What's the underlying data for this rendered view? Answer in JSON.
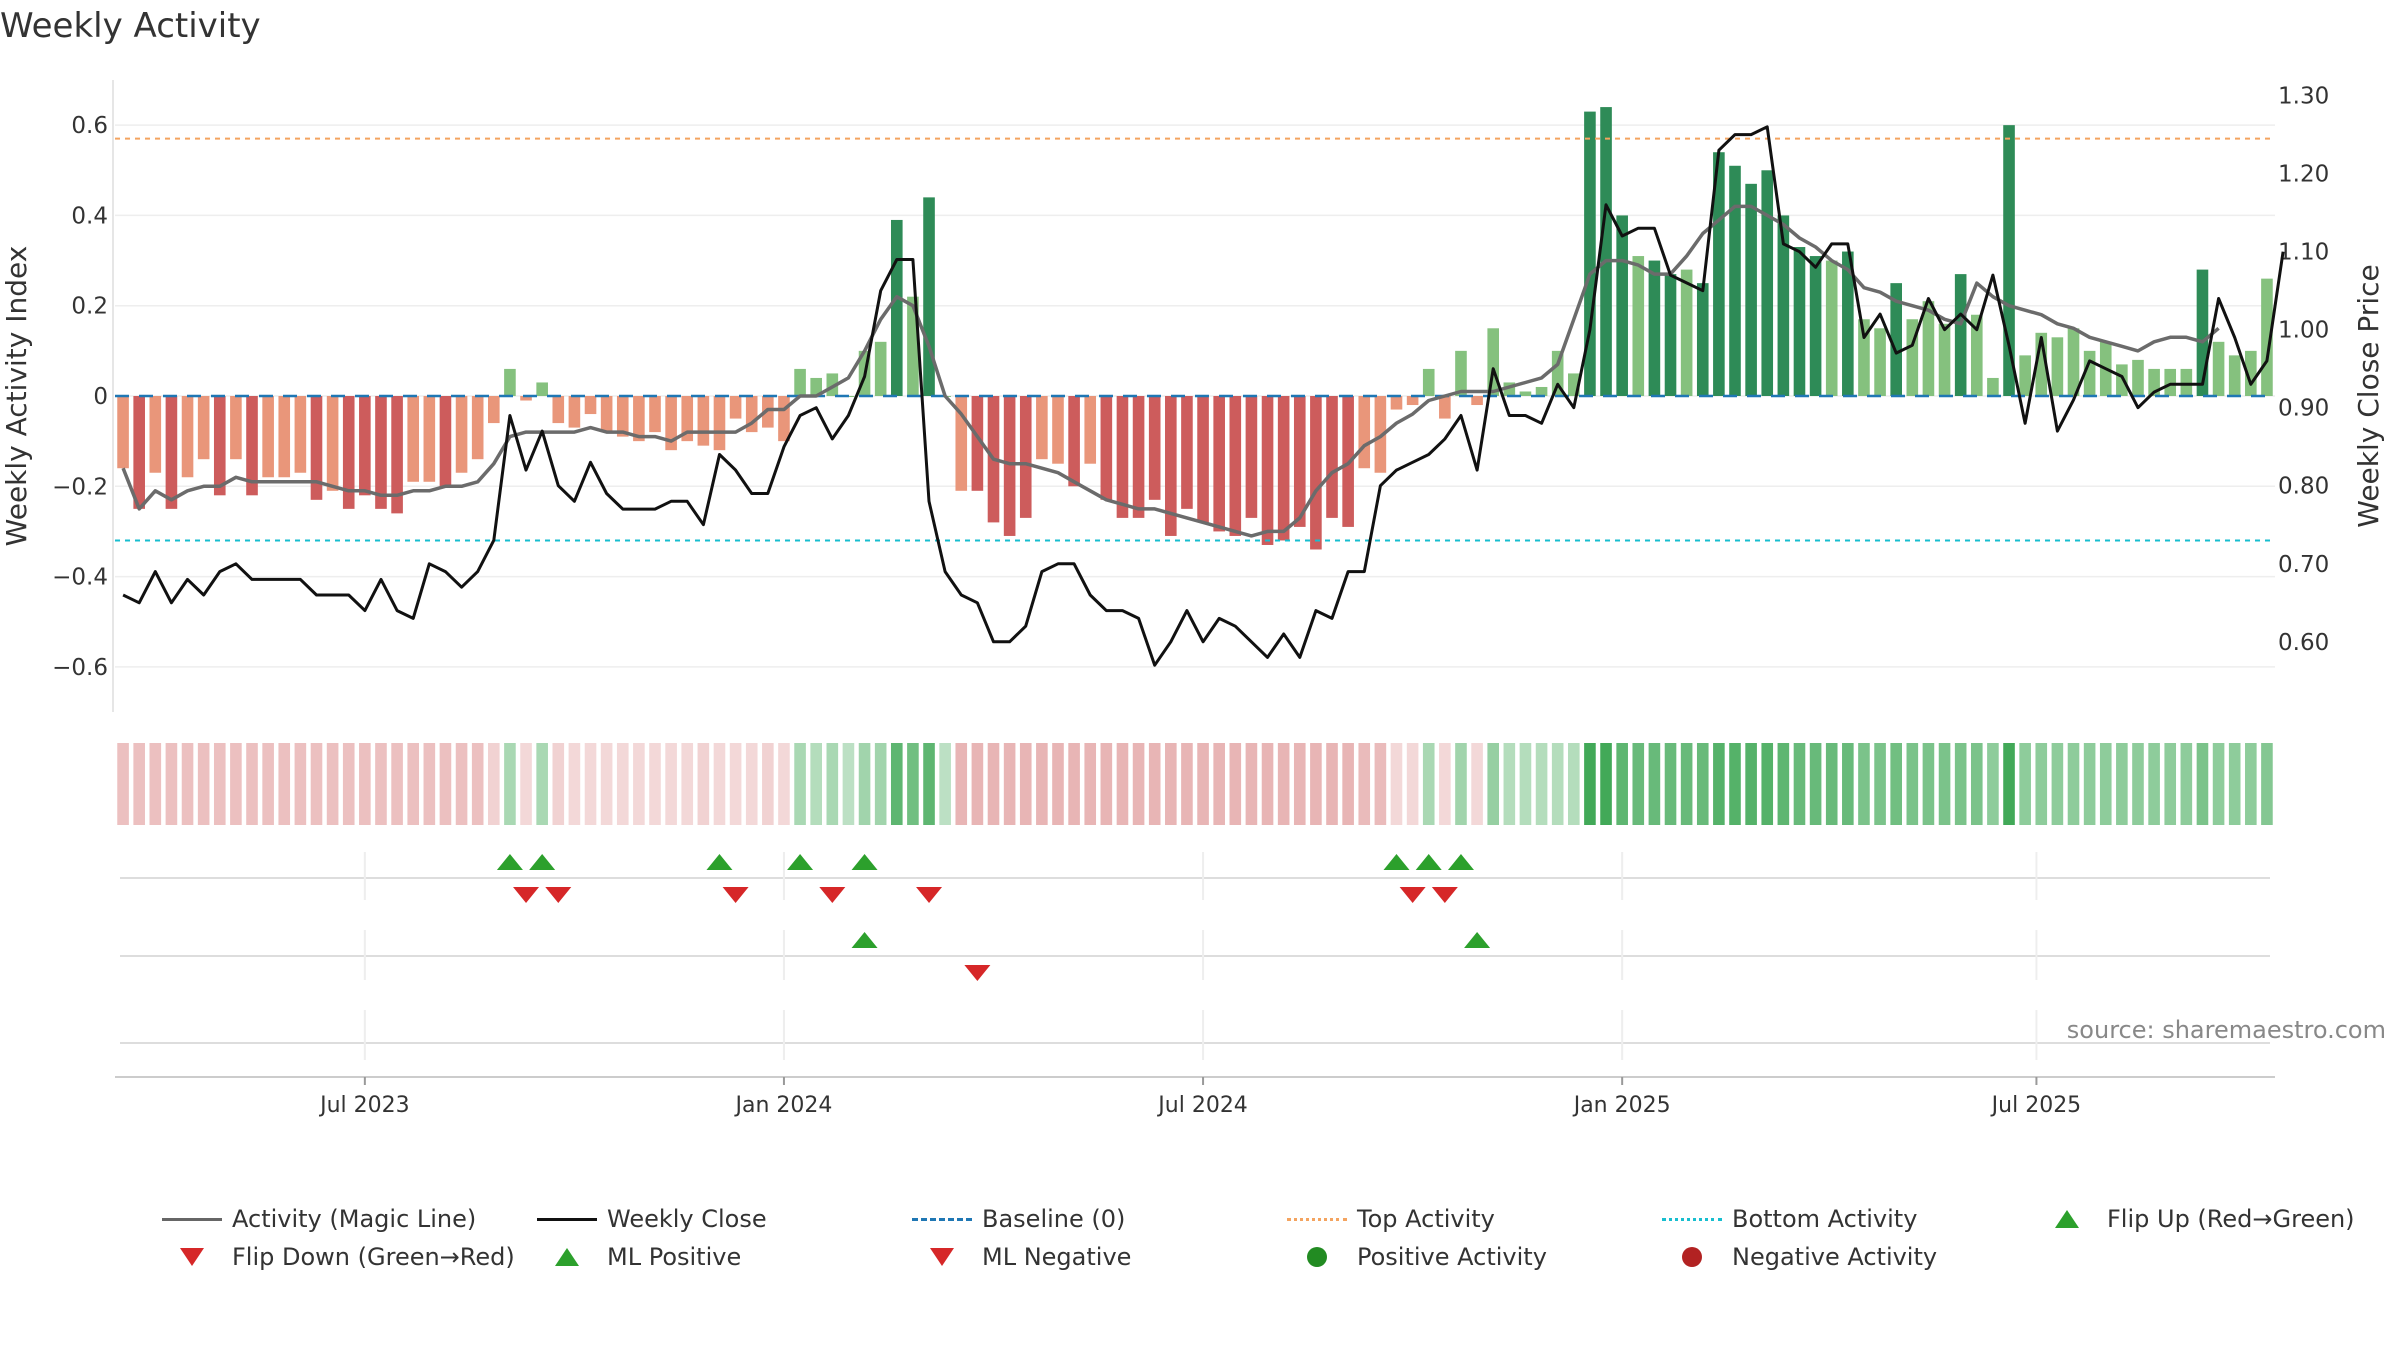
{
  "title": "Weekly Activity",
  "source": "source: sharemaestro.com",
  "colors": {
    "pos_dark": "#2e8b57",
    "pos_light": "#85c17e",
    "neg_dark": "#cd5c5c",
    "neg_light": "#e9967a",
    "magic": "#6b6b6b",
    "close": "#111111",
    "baseline": "#1f77b4",
    "top": "#f4a460",
    "bottom": "#17becf",
    "flip_up": "#2ca02c",
    "flip_down": "#d62728",
    "pos_dot": "#228b22",
    "neg_dot": "#b22222"
  },
  "legend": {
    "magic": "Activity (Magic Line)",
    "close": "Weekly Close",
    "baseline": "Baseline (0)",
    "top": "Top Activity",
    "bottom": "Bottom Activity",
    "flip_up": "Flip Up (Red→Green)",
    "flip_down": "Flip Down (Green→Red)",
    "ml_pos": "ML Positive",
    "ml_neg": "ML Negative",
    "pos_act": "Positive Activity",
    "neg_act": "Negative Activity"
  },
  "chart_data": {
    "type": "bar",
    "title": "Weekly Activity",
    "ylabel": "Weekly Activity Index",
    "y2label": "Weekly Close Price",
    "ylim": [
      -0.7,
      0.7
    ],
    "y2lim": [
      0.51,
      1.32
    ],
    "yticks": [
      -0.6,
      -0.4,
      -0.2,
      0,
      0.2,
      0.4,
      0.6
    ],
    "ytick_labels": [
      "−0.6",
      "−0.4",
      "−0.2",
      "0",
      "0.2",
      "0.4",
      "0.6"
    ],
    "y2ticks": [
      0.6,
      0.7,
      0.8,
      0.9,
      1.0,
      1.1,
      1.2,
      1.3
    ],
    "y2tick_labels": [
      "0.60",
      "0.70",
      "0.80",
      "0.90",
      "1.00",
      "1.10",
      "1.20",
      "1.30"
    ],
    "xticks": [
      {
        "week": 15.5,
        "label": "Jul 2023"
      },
      {
        "week": 41.5,
        "label": "Jan 2024"
      },
      {
        "week": 67.5,
        "label": "Jul 2024"
      },
      {
        "week": 93.5,
        "label": "Jan 2025"
      },
      {
        "week": 119.2,
        "label": "Jul 2025"
      }
    ],
    "top_activity": 0.57,
    "bottom_activity": -0.32,
    "baseline": 0,
    "activity": [
      -0.16,
      -0.25,
      -0.17,
      -0.25,
      -0.18,
      -0.14,
      -0.22,
      -0.14,
      -0.22,
      -0.18,
      -0.18,
      -0.17,
      -0.23,
      -0.21,
      -0.25,
      -0.22,
      -0.25,
      -0.26,
      -0.19,
      -0.19,
      -0.2,
      -0.17,
      -0.14,
      -0.06,
      0.06,
      -0.01,
      0.03,
      -0.06,
      -0.07,
      -0.04,
      -0.08,
      -0.09,
      -0.1,
      -0.08,
      -0.12,
      -0.1,
      -0.11,
      -0.12,
      -0.05,
      -0.08,
      -0.07,
      -0.1,
      0.06,
      0.04,
      0.05,
      0.0,
      0.1,
      0.12,
      0.39,
      0.22,
      0.44,
      0.0,
      -0.21,
      -0.21,
      -0.28,
      -0.31,
      -0.27,
      -0.14,
      -0.15,
      -0.2,
      -0.15,
      -0.23,
      -0.27,
      -0.27,
      -0.23,
      -0.31,
      -0.25,
      -0.28,
      -0.3,
      -0.31,
      -0.27,
      -0.33,
      -0.32,
      -0.29,
      -0.34,
      -0.27,
      -0.29,
      -0.16,
      -0.17,
      -0.03,
      -0.02,
      0.06,
      -0.05,
      0.1,
      -0.02,
      0.15,
      0.03,
      0.01,
      0.02,
      0.1,
      0.05,
      0.63,
      0.64,
      0.4,
      0.31,
      0.3,
      0.27,
      0.28,
      0.25,
      0.54,
      0.51,
      0.47,
      0.5,
      0.4,
      0.33,
      0.31,
      0.3,
      0.32,
      0.17,
      0.15,
      0.25,
      0.17,
      0.21,
      0.16,
      0.27,
      0.18,
      0.04,
      0.6,
      0.09,
      0.14,
      0.13,
      0.15,
      0.1,
      0.12,
      0.07,
      0.08,
      0.06,
      0.06,
      0.06,
      0.28,
      0.12,
      0.09,
      0.1,
      0.26
    ],
    "magic_line": [
      -0.16,
      -0.25,
      -0.21,
      -0.23,
      -0.21,
      -0.2,
      -0.2,
      -0.18,
      -0.19,
      -0.19,
      -0.19,
      -0.19,
      -0.19,
      -0.2,
      -0.21,
      -0.21,
      -0.22,
      -0.22,
      -0.21,
      -0.21,
      -0.2,
      -0.2,
      -0.19,
      -0.15,
      -0.09,
      -0.08,
      -0.08,
      -0.08,
      -0.08,
      -0.07,
      -0.08,
      -0.08,
      -0.09,
      -0.09,
      -0.1,
      -0.08,
      -0.08,
      -0.08,
      -0.08,
      -0.06,
      -0.03,
      -0.03,
      0.0,
      0.0,
      0.02,
      0.04,
      0.1,
      0.17,
      0.22,
      0.2,
      0.11,
      0.0,
      -0.04,
      -0.09,
      -0.14,
      -0.15,
      -0.15,
      -0.16,
      -0.17,
      -0.19,
      -0.21,
      -0.23,
      -0.24,
      -0.25,
      -0.25,
      -0.26,
      -0.27,
      -0.28,
      -0.29,
      -0.3,
      -0.31,
      -0.3,
      -0.3,
      -0.27,
      -0.21,
      -0.17,
      -0.15,
      -0.11,
      -0.09,
      -0.06,
      -0.04,
      -0.01,
      0.0,
      0.01,
      0.01,
      0.01,
      0.02,
      0.03,
      0.04,
      0.07,
      0.17,
      0.27,
      0.3,
      0.3,
      0.29,
      0.27,
      0.27,
      0.31,
      0.36,
      0.39,
      0.42,
      0.42,
      0.4,
      0.38,
      0.35,
      0.33,
      0.3,
      0.28,
      0.24,
      0.23,
      0.21,
      0.2,
      0.19,
      0.17,
      0.16,
      0.25,
      0.22,
      0.2,
      0.19,
      0.18,
      0.16,
      0.15,
      0.13,
      0.12,
      0.11,
      0.1,
      0.12,
      0.13,
      0.13,
      0.12,
      0.15
    ],
    "weekly_close": [
      0.66,
      0.65,
      0.69,
      0.65,
      0.68,
      0.66,
      0.69,
      0.7,
      0.68,
      0.68,
      0.68,
      0.68,
      0.66,
      0.66,
      0.66,
      0.64,
      0.68,
      0.64,
      0.63,
      0.7,
      0.69,
      0.67,
      0.69,
      0.73,
      0.89,
      0.82,
      0.87,
      0.8,
      0.78,
      0.83,
      0.79,
      0.77,
      0.77,
      0.77,
      0.78,
      0.78,
      0.75,
      0.84,
      0.82,
      0.79,
      0.79,
      0.85,
      0.89,
      0.9,
      0.86,
      0.89,
      0.94,
      1.05,
      1.09,
      1.09,
      0.78,
      0.69,
      0.66,
      0.65,
      0.6,
      0.6,
      0.62,
      0.69,
      0.7,
      0.7,
      0.66,
      0.64,
      0.64,
      0.63,
      0.57,
      0.6,
      0.64,
      0.6,
      0.63,
      0.62,
      0.6,
      0.58,
      0.61,
      0.58,
      0.64,
      0.63,
      0.69,
      0.69,
      0.8,
      0.82,
      0.83,
      0.84,
      0.86,
      0.89,
      0.82,
      0.95,
      0.89,
      0.89,
      0.88,
      0.93,
      0.9,
      1.0,
      1.16,
      1.12,
      1.13,
      1.13,
      1.07,
      1.06,
      1.05,
      1.23,
      1.25,
      1.25,
      1.26,
      1.11,
      1.1,
      1.08,
      1.11,
      1.11,
      0.99,
      1.02,
      0.97,
      0.98,
      1.04,
      1.0,
      1.02,
      1.0,
      1.07,
      0.98,
      0.88,
      0.99,
      0.87,
      0.91,
      0.96,
      0.95,
      0.94,
      0.9,
      0.92,
      0.93,
      0.93,
      0.93,
      1.04,
      0.99,
      0.93,
      0.96,
      1.1
    ],
    "strip_intensity": [
      0.55,
      0.55,
      0.55,
      0.55,
      0.55,
      0.55,
      0.55,
      0.55,
      0.55,
      0.55,
      0.55,
      0.55,
      0.55,
      0.55,
      0.55,
      0.55,
      0.55,
      0.55,
      0.55,
      0.55,
      0.55,
      0.55,
      0.55,
      0.4,
      0.45,
      0.35,
      0.45,
      0.4,
      0.35,
      0.35,
      0.35,
      0.35,
      0.35,
      0.35,
      0.35,
      0.35,
      0.4,
      0.35,
      0.35,
      0.35,
      0.4,
      0.35,
      0.45,
      0.4,
      0.45,
      0.35,
      0.5,
      0.5,
      0.85,
      0.75,
      0.85,
      0.35,
      0.65,
      0.65,
      0.65,
      0.65,
      0.65,
      0.65,
      0.65,
      0.65,
      0.65,
      0.65,
      0.65,
      0.65,
      0.65,
      0.65,
      0.65,
      0.65,
      0.65,
      0.65,
      0.65,
      0.65,
      0.65,
      0.65,
      0.65,
      0.65,
      0.65,
      0.6,
      0.6,
      0.35,
      0.35,
      0.45,
      0.35,
      0.5,
      0.35,
      0.55,
      0.4,
      0.4,
      0.4,
      0.4,
      0.4,
      1.0,
      1.0,
      0.85,
      0.8,
      0.8,
      0.8,
      0.8,
      0.8,
      0.9,
      0.9,
      0.9,
      0.9,
      0.85,
      0.8,
      0.8,
      0.8,
      0.8,
      0.7,
      0.7,
      0.75,
      0.7,
      0.7,
      0.7,
      0.7,
      0.7,
      0.6,
      1.1,
      0.6,
      0.6,
      0.6,
      0.6,
      0.6,
      0.6,
      0.6,
      0.6,
      0.6,
      0.6,
      0.6,
      0.7,
      0.6,
      0.6,
      0.6,
      0.65
    ],
    "flip_up_weeks": [
      24,
      26,
      37,
      42,
      46,
      79,
      81,
      83
    ],
    "flip_down_weeks": [
      25,
      27,
      38,
      44,
      50,
      80,
      82
    ],
    "ml_positive_weeks": [
      46,
      84
    ],
    "ml_negative_weeks": [
      53
    ]
  }
}
